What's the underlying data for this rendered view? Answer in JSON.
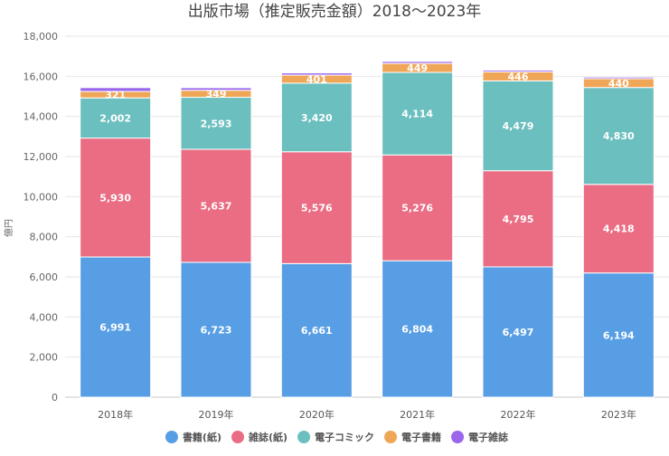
{
  "chart_data": {
    "type": "bar",
    "stacked": true,
    "title": "出版市場（推定販売金額）2018～2023年",
    "ylabel": "億円",
    "xlabel": "",
    "ylim": [
      0,
      18000
    ],
    "yticks": [
      0,
      2000,
      4000,
      6000,
      8000,
      10000,
      12000,
      14000,
      16000,
      18000
    ],
    "ytick_labels": [
      "0",
      "2,000",
      "4,000",
      "6,000",
      "8,000",
      "10,000",
      "12,000",
      "14,000",
      "16,000",
      "18,000"
    ],
    "categories": [
      "2018年",
      "2019年",
      "2020年",
      "2021年",
      "2022年",
      "2023年"
    ],
    "series": [
      {
        "name": "書籍(紙)",
        "color": "#579ee4",
        "values": [
          6991,
          6723,
          6661,
          6804,
          6497,
          6194
        ],
        "labels": [
          "6,991",
          "6,723",
          "6,661",
          "6,804",
          "6,497",
          "6,194"
        ]
      },
      {
        "name": "雑誌(紙)",
        "color": "#ea6d84",
        "values": [
          5930,
          5637,
          5576,
          5276,
          4795,
          4418
        ],
        "labels": [
          "5,930",
          "5,637",
          "5,576",
          "5,276",
          "4,795",
          "4,418"
        ]
      },
      {
        "name": "電子コミック",
        "color": "#6cbfbf",
        "values": [
          2002,
          2593,
          3420,
          4114,
          4479,
          4830
        ],
        "labels": [
          "2,002",
          "2,593",
          "3,420",
          "4,114",
          "4,479",
          "4,830"
        ]
      },
      {
        "name": "電子書籍",
        "color": "#f0a657",
        "values": [
          321,
          349,
          401,
          449,
          446,
          440
        ],
        "labels": [
          "321",
          "349",
          "401",
          "449",
          "446",
          "440"
        ]
      },
      {
        "name": "電子雑誌",
        "color": "#9b66ec",
        "values": [
          193,
          130,
          110,
          99,
          88,
          78
        ],
        "labels": [
          "",
          "",
          "",
          "",
          "",
          ""
        ]
      }
    ],
    "grid": true,
    "legend_position": "bottom"
  }
}
